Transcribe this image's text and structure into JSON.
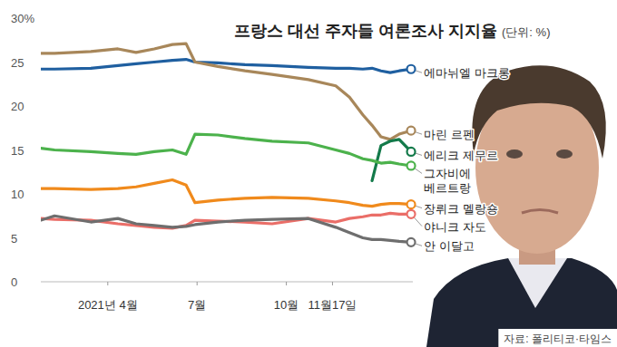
{
  "chart_data": {
    "type": "line",
    "title": "프랑스 대선 주자들 여론조사 지지율",
    "subtitle": "(단위: %)",
    "source": "자료: 폴리티코·타임스",
    "x": [
      1.75,
      2.21,
      3.43,
      4.34,
      4.95,
      5.56,
      6.17,
      6.63,
      6.93,
      7.7,
      8.61,
      9.52,
      10.74,
      11.66,
      12.12,
      12.57,
      12.88,
      13.18,
      13.49,
      13.79,
      14.19
    ],
    "xlim": [
      1.75,
      14.25
    ],
    "xticks": [
      {
        "value": 4,
        "label": "2021년 4월"
      },
      {
        "value": 7,
        "label": "7월"
      },
      {
        "value": 10,
        "label": "10월"
      },
      {
        "value": 11.55,
        "label": "11월17일"
      }
    ],
    "ylim": [
      0,
      30
    ],
    "yticks": [
      0,
      5,
      10,
      15,
      20,
      25,
      {
        "value": 30,
        "label": "30%"
      }
    ],
    "grid": false,
    "marker": "circle",
    "series": [
      {
        "name": "에마뉘엘 마크롱",
        "color": "#1f5fa0",
        "values": [
          24.2,
          24.2,
          24.3,
          24.6,
          24.8,
          25.0,
          25.2,
          25.3,
          25.0,
          24.9,
          24.7,
          24.6,
          24.4,
          24.3,
          24.3,
          24.2,
          24.3,
          24.0,
          23.8,
          24.0,
          24.2
        ]
      },
      {
        "name": "마린 르펜",
        "color": "#a8875a",
        "values": [
          26.0,
          26.0,
          26.2,
          26.5,
          26.1,
          26.5,
          27.0,
          27.1,
          25.0,
          24.5,
          24.0,
          23.6,
          23.0,
          22.3,
          21.0,
          19.0,
          17.8,
          16.5,
          16.2,
          16.8,
          17.2
        ]
      },
      {
        "name": "에리크 제무르",
        "color": "#137a4a",
        "values": [
          null,
          null,
          null,
          null,
          null,
          null,
          null,
          null,
          null,
          null,
          null,
          null,
          null,
          null,
          null,
          null,
          11.5,
          15.5,
          16.0,
          16.2,
          14.8
        ]
      },
      {
        "name": "그자비에\n베르트랑",
        "color": "#4cb24c",
        "values": [
          15.2,
          15.0,
          14.8,
          14.6,
          14.5,
          14.8,
          15.0,
          14.5,
          16.8,
          16.7,
          16.3,
          16.0,
          15.8,
          15.0,
          14.6,
          14.0,
          13.8,
          13.5,
          13.6,
          13.4,
          13.2
        ]
      },
      {
        "name": "장뤼크 멜랑숑",
        "color": "#f08a1c",
        "values": [
          10.6,
          10.6,
          10.5,
          10.6,
          10.8,
          11.2,
          11.6,
          11.0,
          9.0,
          9.3,
          9.5,
          9.6,
          9.5,
          9.2,
          9.0,
          8.7,
          8.6,
          8.8,
          8.9,
          8.9,
          8.8
        ]
      },
      {
        "name": "야니크 자도",
        "color": "#ea6e68",
        "values": [
          7.2,
          7.1,
          7.0,
          6.6,
          6.4,
          6.2,
          6.1,
          6.4,
          7.0,
          6.9,
          6.8,
          6.6,
          7.2,
          6.8,
          7.2,
          7.4,
          7.6,
          7.6,
          7.8,
          7.7,
          7.7
        ]
      },
      {
        "name": "안 이달고",
        "color": "#6e6e6e",
        "values": [
          7.0,
          7.5,
          6.8,
          7.2,
          6.6,
          6.4,
          6.2,
          6.3,
          6.5,
          6.8,
          7.0,
          7.1,
          7.2,
          6.2,
          5.6,
          5.0,
          4.8,
          4.8,
          4.7,
          4.6,
          4.5
        ]
      }
    ]
  }
}
